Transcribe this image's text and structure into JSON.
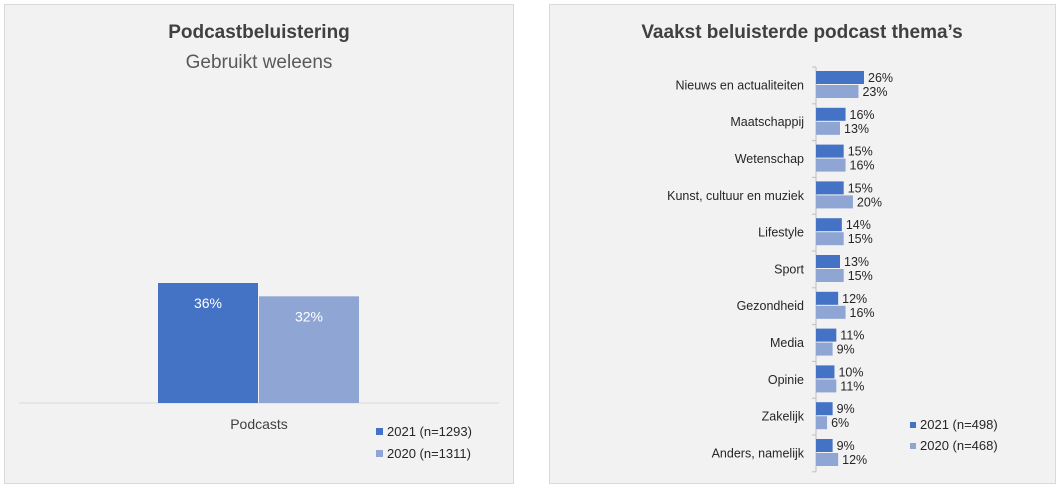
{
  "colors": {
    "series_2021": "#4472c4",
    "series_2020": "#8fa5d4",
    "panel_bg": "#f2f2f2"
  },
  "left": {
    "title": "Podcastbeluistering",
    "subtitle": "Gebruikt weleens"
  },
  "right": {
    "title": "Vaakst beluisterde podcast thema’s"
  },
  "chart_data": [
    {
      "type": "bar",
      "orientation": "vertical",
      "title": "Podcastbeluistering",
      "subtitle": "Gebruikt weleens",
      "categories": [
        "Podcasts"
      ],
      "series": [
        {
          "name": "2021 (n=1293)",
          "values": [
            36
          ],
          "labels": [
            "36%"
          ]
        },
        {
          "name": "2020 (n=1311)",
          "values": [
            32
          ],
          "labels": [
            "32%"
          ]
        }
      ],
      "unit": "%",
      "legend_position": "bottom-right",
      "grid": false
    },
    {
      "type": "bar",
      "orientation": "horizontal",
      "title": "Vaakst beluisterde podcast thema’s",
      "categories": [
        "Nieuws en actualiteiten",
        "Maatschappij",
        "Wetenschap",
        "Kunst, cultuur en muziek",
        "Lifestyle",
        "Sport",
        "Gezondheid",
        "Media",
        "Opinie",
        "Zakelijk",
        "Anders, namelijk"
      ],
      "series": [
        {
          "name": "2021 (n=498)",
          "values": [
            26,
            16,
            15,
            15,
            14,
            13,
            12,
            11,
            10,
            9,
            9
          ],
          "labels": [
            "26%",
            "16%",
            "15%",
            "15%",
            "14%",
            "13%",
            "12%",
            "11%",
            "10%",
            "9%",
            "9%"
          ]
        },
        {
          "name": "2020 (n=468)",
          "values": [
            23,
            13,
            16,
            20,
            15,
            15,
            16,
            9,
            11,
            6,
            12
          ],
          "labels": [
            "23%",
            "13%",
            "16%",
            "20%",
            "15%",
            "15%",
            "16%",
            "9%",
            "11%",
            "6%",
            "12%"
          ]
        }
      ],
      "unit": "%",
      "legend_position": "bottom-right",
      "grid": false
    }
  ]
}
